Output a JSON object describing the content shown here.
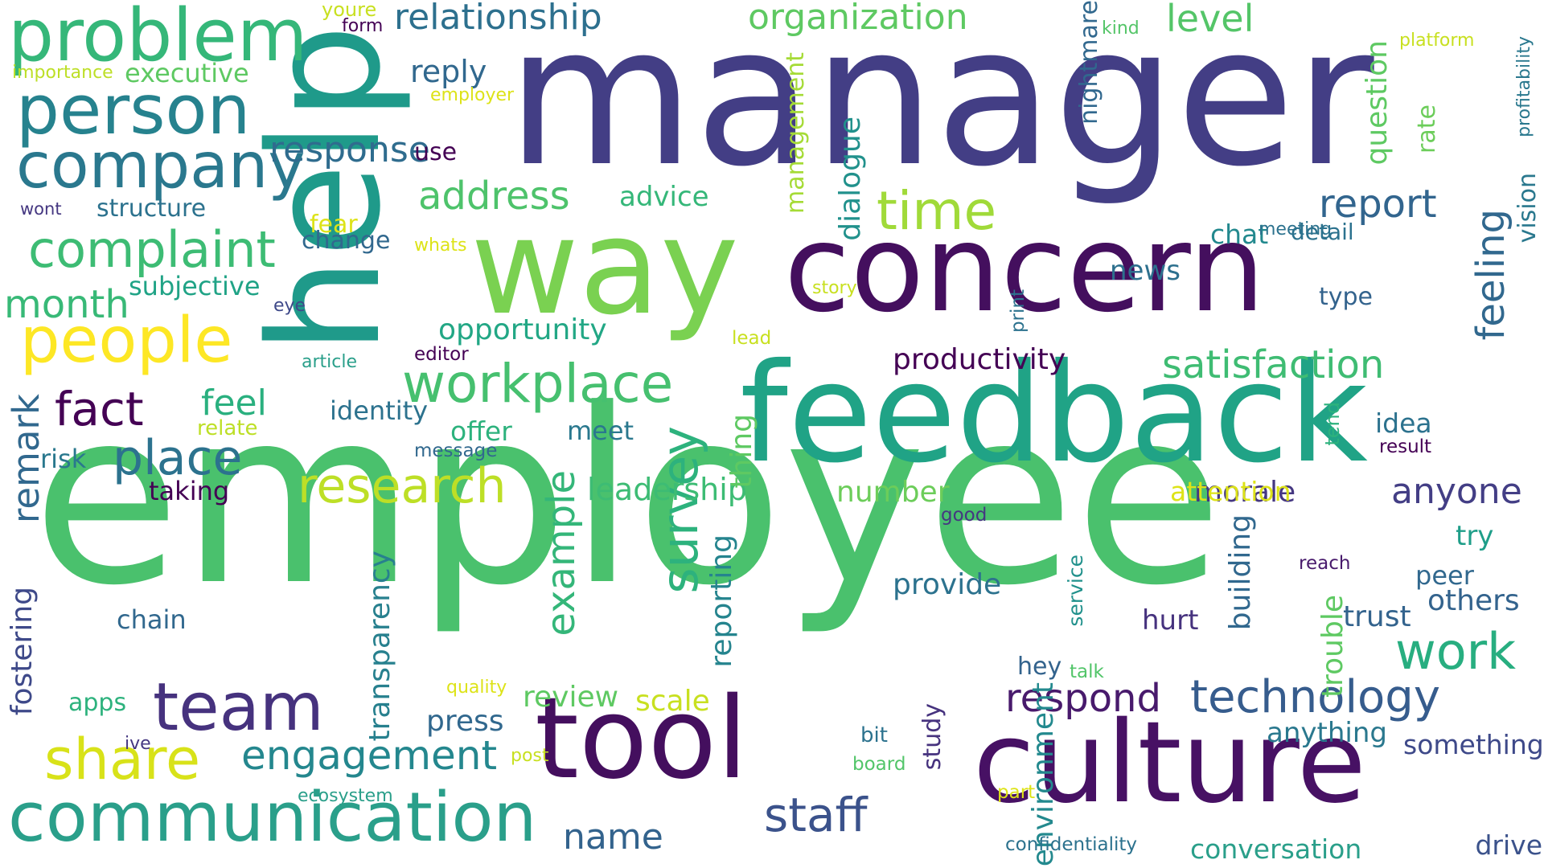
{
  "words": [
    {
      "text": "employee",
      "color": "#4ac16d",
      "vertical": false
    },
    {
      "text": "manager",
      "color": "#433e85",
      "vertical": false
    },
    {
      "text": "feedback",
      "color": "#20a386",
      "vertical": false
    },
    {
      "text": "concern",
      "color": "#440f5e",
      "vertical": false
    },
    {
      "text": "help",
      "color": "#1f9a8a",
      "vertical": true
    },
    {
      "text": "way",
      "color": "#7ad151",
      "vertical": false
    },
    {
      "text": "culture",
      "color": "#471164",
      "vertical": false
    },
    {
      "text": "tool",
      "color": "#440f5e",
      "vertical": false
    },
    {
      "text": "communication",
      "color": "#2a9f8a",
      "vertical": false
    },
    {
      "text": "problem",
      "color": "#35b779",
      "vertical": false
    },
    {
      "text": "team",
      "color": "#46327e",
      "vertical": false
    },
    {
      "text": "person",
      "color": "#26828e",
      "vertical": false
    },
    {
      "text": "people",
      "color": "#fde725",
      "vertical": false
    },
    {
      "text": "company",
      "color": "#2a788e",
      "vertical": false
    },
    {
      "text": "share",
      "color": "#d8e219",
      "vertical": false
    },
    {
      "text": "workplace",
      "color": "#46c06f",
      "vertical": false
    },
    {
      "text": "complaint",
      "color": "#3dbc74",
      "vertical": false
    },
    {
      "text": "survey",
      "color": "#2db27d",
      "vertical": true
    },
    {
      "text": "research",
      "color": "#bddf26",
      "vertical": false
    },
    {
      "text": "technology",
      "color": "#365c8d",
      "vertical": false
    },
    {
      "text": "work",
      "color": "#28ae80",
      "vertical": false
    },
    {
      "text": "time",
      "color": "#a0da39",
      "vertical": false
    },
    {
      "text": "staff",
      "color": "#3b528b",
      "vertical": false
    },
    {
      "text": "place",
      "color": "#2c728e",
      "vertical": false
    },
    {
      "text": "fact",
      "color": "#440154",
      "vertical": false
    },
    {
      "text": "engagement",
      "color": "#24878e",
      "vertical": false
    },
    {
      "text": "feeling",
      "color": "#31688e",
      "vertical": true
    },
    {
      "text": "report",
      "color": "#32658e",
      "vertical": false
    },
    {
      "text": "address",
      "color": "#4ec36b",
      "vertical": false
    },
    {
      "text": "respond",
      "color": "#481a6c",
      "vertical": false
    },
    {
      "text": "example",
      "color": "#34b679",
      "vertical": true
    },
    {
      "text": "satisfaction",
      "color": "#3fbc73",
      "vertical": false
    },
    {
      "text": "relationship",
      "color": "#2d708e",
      "vertical": false
    },
    {
      "text": "organization",
      "color": "#5ec962",
      "vertical": false
    },
    {
      "text": "month",
      "color": "#38b977",
      "vertical": false
    },
    {
      "text": "remark",
      "color": "#31688e",
      "vertical": true
    },
    {
      "text": "anyone",
      "color": "#433e85",
      "vertical": false
    },
    {
      "text": "level",
      "color": "#54c568",
      "vertical": false
    },
    {
      "text": "response",
      "color": "#2f6c8e",
      "vertical": false
    },
    {
      "text": "feel",
      "color": "#2ab07f",
      "vertical": false
    },
    {
      "text": "name",
      "color": "#33638d",
      "vertical": false
    },
    {
      "text": "number",
      "color": "#6ccd5a",
      "vertical": false
    },
    {
      "text": "productivity",
      "color": "#440154",
      "vertical": false
    },
    {
      "text": "opportunity",
      "color": "#22a785",
      "vertical": false
    },
    {
      "text": "subjective",
      "color": "#20a386",
      "vertical": false
    },
    {
      "text": "leadership",
      "color": "#3dbc74",
      "vertical": false
    },
    {
      "text": "fostering",
      "color": "#3e4989",
      "vertical": true
    },
    {
      "text": "transparency",
      "color": "#27808e",
      "vertical": true
    },
    {
      "text": "environment",
      "color": "#23898e",
      "vertical": true
    },
    {
      "text": "press",
      "color": "#31688e",
      "vertical": false
    },
    {
      "text": "review",
      "color": "#5ec962",
      "vertical": false
    },
    {
      "text": "scale",
      "color": "#c8e020",
      "vertical": false
    },
    {
      "text": "provide",
      "color": "#2c728e",
      "vertical": false
    },
    {
      "text": "building",
      "color": "#31688e",
      "vertical": true
    },
    {
      "text": "reporting",
      "color": "#25848e",
      "vertical": true
    },
    {
      "text": "trouble",
      "color": "#5ec962",
      "vertical": true
    },
    {
      "text": "dialogue",
      "color": "#21918c",
      "vertical": true
    },
    {
      "text": "management",
      "color": "#a5db36",
      "vertical": true
    },
    {
      "text": "executive",
      "color": "#5ec962",
      "vertical": false
    },
    {
      "text": "structure",
      "color": "#2c728e",
      "vertical": false
    },
    {
      "text": "advice",
      "color": "#35b779",
      "vertical": false
    },
    {
      "text": "chat",
      "color": "#23898e",
      "vertical": false
    },
    {
      "text": "detail",
      "color": "#2c728e",
      "vertical": false
    },
    {
      "text": "news",
      "color": "#2d708e",
      "vertical": false
    },
    {
      "text": "type",
      "color": "#33638d",
      "vertical": false
    },
    {
      "text": "morale",
      "color": "#453781",
      "vertical": false
    },
    {
      "text": "attention",
      "color": "#dde318",
      "vertical": false
    },
    {
      "text": "idea",
      "color": "#2c728e",
      "vertical": false
    },
    {
      "text": "result",
      "color": "#440154",
      "vertical": false
    },
    {
      "text": "try",
      "color": "#1f9e89",
      "vertical": false
    },
    {
      "text": "peer",
      "color": "#31688e",
      "vertical": false
    },
    {
      "text": "others",
      "color": "#33638d",
      "vertical": false
    },
    {
      "text": "trust",
      "color": "#33638d",
      "vertical": false
    },
    {
      "text": "anything",
      "color": "#2a788e",
      "vertical": false
    },
    {
      "text": "something",
      "color": "#3e4989",
      "vertical": false
    },
    {
      "text": "drive",
      "color": "#3b528b",
      "vertical": false
    },
    {
      "text": "conversation",
      "color": "#2a9f8a",
      "vertical": false
    },
    {
      "text": "confidentiality",
      "color": "#2c728e",
      "vertical": false
    },
    {
      "text": "hurt",
      "color": "#46327e",
      "vertical": false
    },
    {
      "text": "hey",
      "color": "#33638d",
      "vertical": false
    },
    {
      "text": "talk",
      "color": "#52c569",
      "vertical": false
    },
    {
      "text": "study",
      "color": "#46327e",
      "vertical": true
    },
    {
      "text": "bit",
      "color": "#2c728e",
      "vertical": false
    },
    {
      "text": "board",
      "color": "#52c569",
      "vertical": false
    },
    {
      "text": "part",
      "color": "#dde318",
      "vertical": false
    },
    {
      "text": "service",
      "color": "#21918c",
      "vertical": true
    },
    {
      "text": "reach",
      "color": "#481a6c",
      "vertical": false
    },
    {
      "text": "good",
      "color": "#453781",
      "vertical": false
    },
    {
      "text": "thing",
      "color": "#5ec962",
      "vertical": true
    },
    {
      "text": "tend",
      "color": "#2db27d",
      "vertical": true
    },
    {
      "text": "offer",
      "color": "#2db27d",
      "vertical": false
    },
    {
      "text": "meet",
      "color": "#2a788e",
      "vertical": false
    },
    {
      "text": "identity",
      "color": "#2c728e",
      "vertical": false
    },
    {
      "text": "editor",
      "color": "#440154",
      "vertical": false
    },
    {
      "text": "message",
      "color": "#31688e",
      "vertical": false
    },
    {
      "text": "taking",
      "color": "#440154",
      "vertical": false
    },
    {
      "text": "risk",
      "color": "#2a788e",
      "vertical": false
    },
    {
      "text": "relate",
      "color": "#bddf26",
      "vertical": false
    },
    {
      "text": "article",
      "color": "#2a9f8a",
      "vertical": false
    },
    {
      "text": "eye",
      "color": "#3e4989",
      "vertical": false
    },
    {
      "text": "lead",
      "color": "#c8e020",
      "vertical": false
    },
    {
      "text": "story",
      "color": "#c8e020",
      "vertical": false
    },
    {
      "text": "print",
      "color": "#2c728e",
      "vertical": true
    },
    {
      "text": "change",
      "color": "#31688e",
      "vertical": false
    },
    {
      "text": "whats",
      "color": "#dde318",
      "vertical": false
    },
    {
      "text": "wont",
      "color": "#453781",
      "vertical": false
    },
    {
      "text": "fear",
      "color": "#dde318",
      "vertical": false
    },
    {
      "text": "use",
      "color": "#440154",
      "vertical": false
    },
    {
      "text": "reply",
      "color": "#31688e",
      "vertical": false
    },
    {
      "text": "employer",
      "color": "#dde318",
      "vertical": false
    },
    {
      "text": "importance",
      "color": "#bddf26",
      "vertical": false
    },
    {
      "text": "youre",
      "color": "#c8e020",
      "vertical": false
    },
    {
      "text": "form",
      "color": "#440154",
      "vertical": false
    },
    {
      "text": "nightmare",
      "color": "#31688e",
      "vertical": true
    },
    {
      "text": "kind",
      "color": "#54c568",
      "vertical": false
    },
    {
      "text": "platform",
      "color": "#c8e020",
      "vertical": false
    },
    {
      "text": "question",
      "color": "#5ec962",
      "vertical": true
    },
    {
      "text": "rate",
      "color": "#6ccd5a",
      "vertical": true
    },
    {
      "text": "profitability",
      "color": "#2a788e",
      "vertical": true
    },
    {
      "text": "vision",
      "color": "#2a788e",
      "vertical": true
    },
    {
      "text": "meeting",
      "color": "#2c728e",
      "vertical": false
    },
    {
      "text": "chain",
      "color": "#31688e",
      "vertical": false
    },
    {
      "text": "apps",
      "color": "#2db27d",
      "vertical": false
    },
    {
      "text": "ive",
      "color": "#453781",
      "vertical": false
    },
    {
      "text": "ecosystem",
      "color": "#2a9f8a",
      "vertical": false
    },
    {
      "text": "post",
      "color": "#c8e020",
      "vertical": false
    },
    {
      "text": "quality",
      "color": "#dde318",
      "vertical": false
    }
  ]
}
